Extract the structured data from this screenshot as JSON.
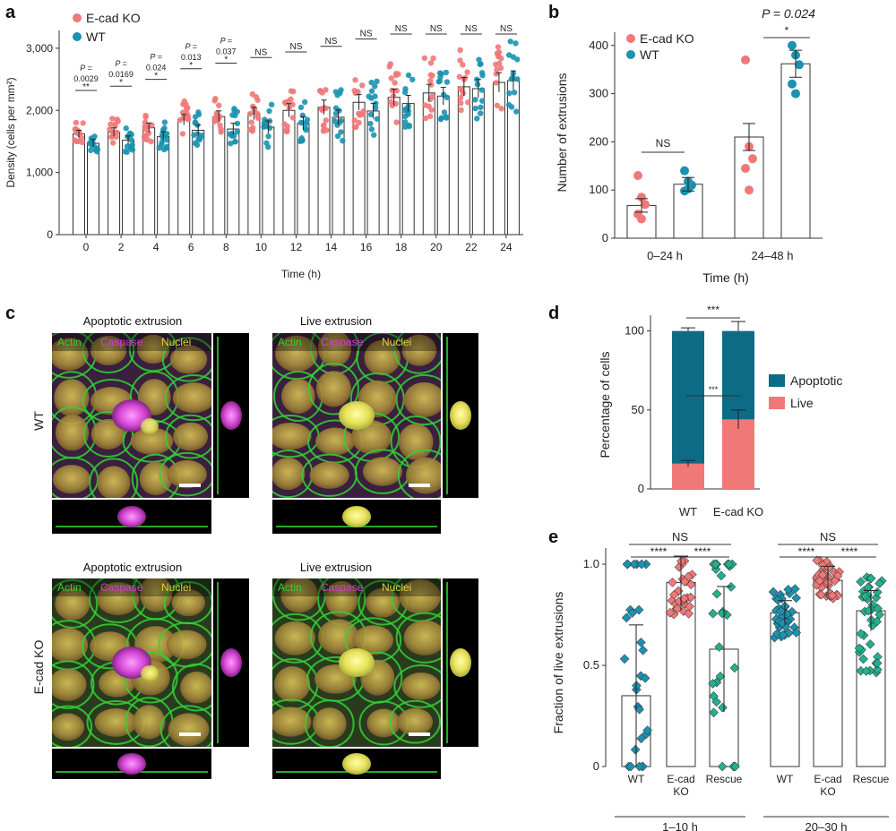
{
  "colors": {
    "ko": "#f07878",
    "wt": "#1a92b0",
    "apoptotic": "#0e6b85",
    "live": "#f07878",
    "actin": "#32d232",
    "caspase": "#d540d5",
    "nuclei": "#e0d23a"
  },
  "panels": {
    "a": "a",
    "b": "b",
    "c": "c",
    "d": "d",
    "e": "e"
  },
  "panel_c": {
    "titles": [
      "Apoptotic extrusion",
      "Live extrusion",
      "Apoptotic extrusion",
      "Live extrusion"
    ],
    "channel_labels": [
      "Actin",
      "Caspase",
      "Nuclei"
    ],
    "row_labels": [
      "WT",
      "E-cad KO"
    ]
  },
  "chart_data": [
    {
      "id": "a",
      "type": "bar",
      "xlabel": "Time (h)",
      "ylabel": "Density (cells per mm²)",
      "ylim": [
        0,
        3200
      ],
      "yticks": [
        0,
        1000,
        2000,
        3000
      ],
      "ytick_labels": [
        "0",
        "1,000",
        "2,000",
        "3,000"
      ],
      "categories": [
        "0",
        "2",
        "4",
        "6",
        "8",
        "10",
        "12",
        "14",
        "16",
        "18",
        "20",
        "22",
        "24"
      ],
      "series": [
        {
          "name": "E-cad KO",
          "values": [
            1620,
            1650,
            1720,
            1850,
            1900,
            1950,
            2000,
            2050,
            2130,
            2210,
            2280,
            2380,
            2450
          ]
        },
        {
          "name": "WT",
          "values": [
            1470,
            1520,
            1580,
            1680,
            1700,
            1730,
            1790,
            1890,
            1990,
            2110,
            2230,
            2350,
            2480
          ]
        }
      ],
      "significance": [
        "P = 0.0029 **",
        "P = 0.0169 *",
        "P = 0.024 *",
        "P = 0.013 *",
        "P = 0.037 *",
        "NS",
        "NS",
        "NS",
        "NS",
        "NS",
        "NS",
        "NS",
        "NS"
      ],
      "legend": "top-left"
    },
    {
      "id": "b",
      "type": "bar",
      "xlabel": "Time (h)",
      "ylabel": "Number of extrusions",
      "ylim": [
        0,
        420
      ],
      "yticks": [
        0,
        100,
        200,
        300,
        400
      ],
      "categories": [
        "0–24 h",
        "24–48 h"
      ],
      "series": [
        {
          "name": "E-cad KO",
          "values": [
            68,
            210
          ],
          "points": [
            [
              130,
              85,
              70,
              50,
              40
            ],
            [
              370,
              190,
              165,
              145,
              100
            ]
          ]
        },
        {
          "name": "WT",
          "values": [
            112,
            362
          ],
          "points": [
            [
              140,
              118,
              110,
              98,
              102
            ],
            [
              400,
              380,
              360,
              320,
              300
            ]
          ]
        }
      ],
      "annotations": [
        "NS",
        "P = 0.024",
        "*"
      ],
      "legend": "top-left"
    },
    {
      "id": "d",
      "type": "bar",
      "stacked": true,
      "ylabel": "Percentage of cells",
      "ylim": [
        0,
        110
      ],
      "yticks": [
        0,
        50,
        100
      ],
      "categories": [
        "WT",
        "E-cad KO"
      ],
      "series": [
        {
          "name": "Apoptotic",
          "values": [
            84,
            56
          ]
        },
        {
          "name": "Live",
          "values": [
            16,
            44
          ]
        }
      ],
      "annotations": [
        "***",
        "***"
      ],
      "legend": "right"
    },
    {
      "id": "e",
      "type": "bar",
      "ylabel": "Fraction of live extrusions",
      "ylim": [
        0,
        1.08
      ],
      "yticks": [
        0,
        0.5,
        1.0
      ],
      "ytick_labels": [
        "0",
        "0.5",
        "1.0"
      ],
      "categories": [
        "WT",
        "E-cad KO",
        "Rescue",
        "WT",
        "E-cad KO",
        "Rescue"
      ],
      "groups": [
        "1–10 h",
        "20–30 h"
      ],
      "values": [
        0.35,
        0.91,
        0.58,
        0.76,
        0.92,
        0.77
      ],
      "errors": [
        0.35,
        0.14,
        0.31,
        0.06,
        0.07,
        0.1
      ],
      "annotations": [
        "NS",
        "****",
        "****",
        "NS",
        "****",
        "****"
      ]
    }
  ]
}
